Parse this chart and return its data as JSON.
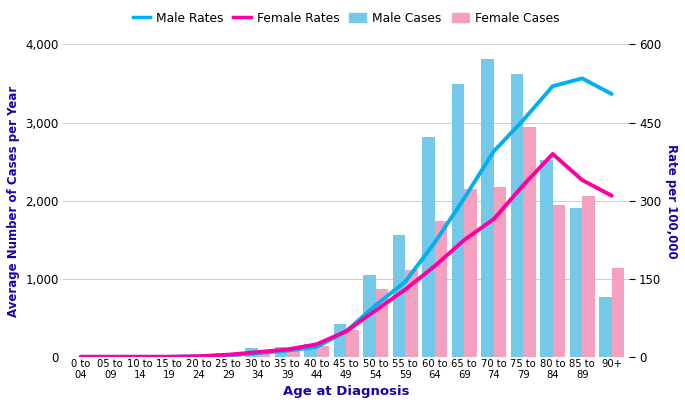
{
  "age_groups": [
    "0 to\n04",
    "05 to\n09",
    "10 to\n14",
    "15 to\n19",
    "20 to\n24",
    "25 to\n29",
    "30 to\n34",
    "35 to\n39",
    "40 to\n44",
    "45 to\n49",
    "50 to\n54",
    "55 to\n59",
    "60 to\n64",
    "65 to\n69",
    "70 to\n74",
    "75 to\n79",
    "80 to\n84",
    "85 to\n89",
    "90+"
  ],
  "male_cases": [
    10,
    10,
    10,
    15,
    20,
    60,
    115,
    135,
    175,
    430,
    1050,
    1560,
    2820,
    3490,
    3810,
    3620,
    2520,
    1910,
    770
  ],
  "female_cases": [
    8,
    8,
    8,
    12,
    15,
    40,
    85,
    100,
    145,
    355,
    870,
    1115,
    1745,
    2155,
    2175,
    2950,
    1950,
    2060,
    1140
  ],
  "male_rates": [
    1,
    1,
    1,
    1,
    2,
    4,
    8,
    13,
    20,
    50,
    100,
    145,
    220,
    305,
    395,
    455,
    520,
    535,
    505
  ],
  "female_rates": [
    1,
    1,
    1,
    1,
    2,
    5,
    10,
    15,
    25,
    50,
    90,
    130,
    175,
    225,
    265,
    330,
    390,
    340,
    310
  ],
  "male_cases_color": "#74C8E8",
  "female_cases_color": "#F4A0C0",
  "male_rates_color": "#00B0F0",
  "female_rates_color": "#FF00A0",
  "left_ylim": [
    0,
    4000
  ],
  "right_ylim": [
    0,
    600
  ],
  "left_yticks": [
    0,
    1000,
    2000,
    3000,
    4000
  ],
  "right_yticks": [
    0,
    150,
    300,
    450,
    600
  ],
  "left_ylabel": "Average Number of Cases per Year",
  "right_ylabel": "Rate per 100,000",
  "xlabel": "Age at Diagnosis",
  "axis_label_color": "#1F00AA",
  "background_color": "#FFFFFF",
  "legend_labels": [
    "Male Rates",
    "Female Rates",
    "Male Cases",
    "Female Cases"
  ],
  "bar_width": 0.42
}
